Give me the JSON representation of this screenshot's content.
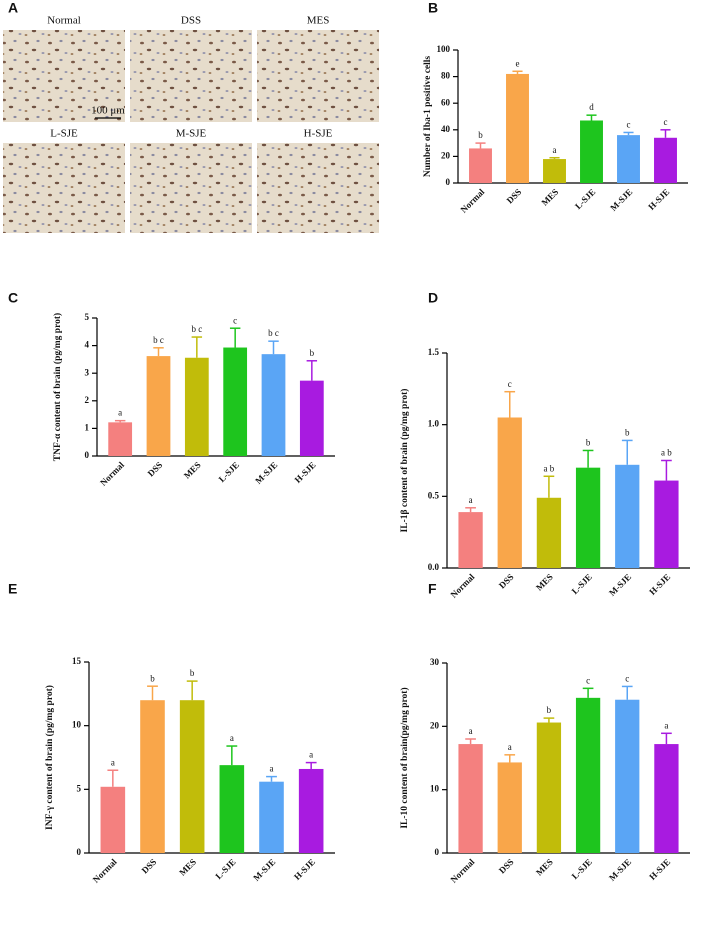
{
  "panel_a": {
    "label": "A",
    "images": [
      "Normal",
      "DSS",
      "MES",
      "L-SJE",
      "M-SJE",
      "H-SJE"
    ],
    "scale_bar": "100 μm"
  },
  "chart_data": [
    {
      "panel": "B",
      "type": "bar",
      "ylabel": "Number of Iba-1 positive cells",
      "categories": [
        "Normal",
        "DSS",
        "MES",
        "L-SJE",
        "M-SJE",
        "H-SJE"
      ],
      "values": [
        26,
        82,
        18,
        47,
        36,
        34
      ],
      "errors": [
        4,
        2,
        1,
        4,
        2,
        6
      ],
      "annotations": [
        "b",
        "e",
        "a",
        "d",
        "c",
        "c"
      ],
      "colors": [
        "#f4807f",
        "#f9a64a",
        "#c1bc0a",
        "#1ec51e",
        "#5aa5f5",
        "#a81be0"
      ],
      "ylim": [
        0,
        100
      ],
      "yticks": [
        0,
        20,
        40,
        60,
        80,
        100
      ]
    },
    {
      "panel": "C",
      "type": "bar",
      "ylabel": "TNF-α content of brain (pg/mg prot)",
      "categories": [
        "Normal",
        "DSS",
        "MES",
        "L-SJE",
        "M-SJE",
        "H-SJE"
      ],
      "values": [
        1.22,
        3.62,
        3.56,
        3.93,
        3.69,
        2.73
      ],
      "errors": [
        0.06,
        0.3,
        0.75,
        0.7,
        0.47,
        0.72
      ],
      "annotations": [
        "a",
        "b c",
        "b c",
        "c",
        "b c",
        "b"
      ],
      "colors": [
        "#f4807f",
        "#f9a64a",
        "#c1bc0a",
        "#1ec51e",
        "#5aa5f5",
        "#a81be0"
      ],
      "ylim": [
        0,
        5
      ],
      "yticks": [
        0,
        1,
        2,
        3,
        4,
        5
      ]
    },
    {
      "panel": "D",
      "type": "bar",
      "ylabel": "IL-1β content of brain (pg/mg prot)",
      "categories": [
        "Normal",
        "DSS",
        "MES",
        "L-SJE",
        "M-SJE",
        "H-SJE"
      ],
      "values": [
        0.39,
        1.05,
        0.49,
        0.7,
        0.72,
        0.61
      ],
      "errors": [
        0.03,
        0.18,
        0.15,
        0.12,
        0.17,
        0.14
      ],
      "annotations": [
        "a",
        "c",
        "a b",
        "b",
        "b",
        "a b"
      ],
      "colors": [
        "#f4807f",
        "#f9a64a",
        "#c1bc0a",
        "#1ec51e",
        "#5aa5f5",
        "#a81be0"
      ],
      "ylim": [
        0,
        1.5
      ],
      "yticks": [
        {
          "value": 0,
          "label": "0.0"
        },
        0.5,
        {
          "value": 1,
          "label": "1.0"
        },
        1.5
      ]
    },
    {
      "panel": "E",
      "type": "bar",
      "ylabel": "INF-γ content of brain (pg/mg prot)",
      "categories": [
        "Normal",
        "DSS",
        "MES",
        "L-SJE",
        "M-SJE",
        "H-SJE"
      ],
      "values": [
        5.2,
        12.0,
        12.0,
        6.9,
        5.6,
        6.6
      ],
      "errors": [
        1.3,
        1.1,
        1.5,
        1.5,
        0.4,
        0.5
      ],
      "annotations": [
        "a",
        "b",
        "b",
        "a",
        "a",
        "a"
      ],
      "colors": [
        "#f4807f",
        "#f9a64a",
        "#c1bc0a",
        "#1ec51e",
        "#5aa5f5",
        "#a81be0"
      ],
      "ylim": [
        0,
        15
      ],
      "yticks": [
        0,
        5,
        10,
        15
      ]
    },
    {
      "panel": "F",
      "type": "bar",
      "ylabel": "IL-10 content of brain(pg/mg prot)",
      "categories": [
        "Normal",
        "DSS",
        "MES",
        "L-SJE",
        "M-SJE",
        "H-SJE"
      ],
      "values": [
        17.2,
        14.3,
        20.6,
        24.5,
        24.2,
        17.2
      ],
      "errors": [
        0.8,
        1.2,
        0.7,
        1.5,
        2.1,
        1.7
      ],
      "annotations": [
        "a",
        "a",
        "b",
        "c",
        "c",
        "a"
      ],
      "colors": [
        "#f4807f",
        "#f9a64a",
        "#c1bc0a",
        "#1ec51e",
        "#5aa5f5",
        "#a81be0"
      ],
      "ylim": [
        0,
        30
      ],
      "yticks": [
        0,
        10,
        20,
        30
      ]
    }
  ]
}
